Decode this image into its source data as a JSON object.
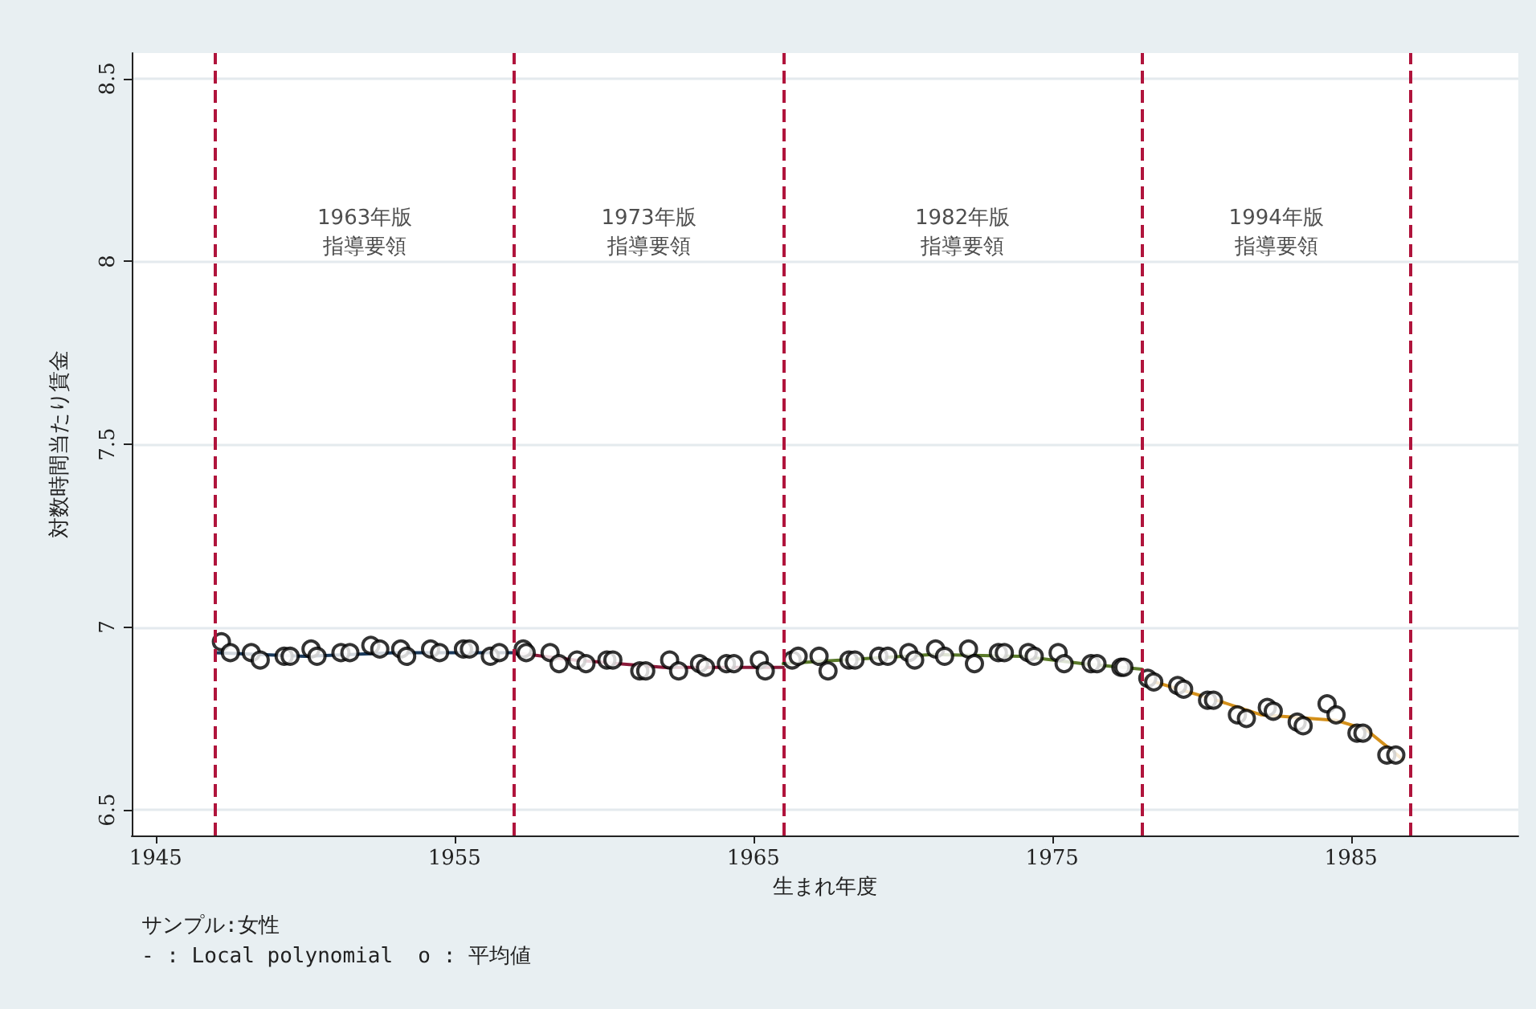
{
  "chart_data": {
    "type": "scatter",
    "xlabel": "生まれ年度",
    "ylabel": "対数時間当たり賃金",
    "xlim": [
      1944.2,
      1990.6
    ],
    "ylim": [
      6.43,
      8.57
    ],
    "xticks": [
      1945,
      1955,
      1965,
      1975,
      1985
    ],
    "yticks": [
      6.5,
      7,
      7.5,
      8,
      8.5
    ],
    "grid": "y",
    "ref_lines": [
      {
        "axis": "x",
        "value": 1947,
        "color": "#b0143c",
        "line_style": "dashed"
      },
      {
        "axis": "x",
        "value": 1957,
        "color": "#b0143c",
        "line_style": "dashed"
      },
      {
        "axis": "x",
        "value": 1966,
        "color": "#b0143c",
        "line_style": "dashed"
      },
      {
        "axis": "x",
        "value": 1978,
        "color": "#b0143c",
        "line_style": "dashed"
      },
      {
        "axis": "x",
        "value": 1987,
        "color": "#b0143c",
        "line_style": "dashed"
      }
    ],
    "annotations": [
      "1963年版指導要領",
      "1973年版指導要領",
      "1982年版指導要領",
      "1994年版指導要領",
      "サンプル:女性",
      "- : Local polynomial  o : 平均値"
    ],
    "series": [
      {
        "marker": "circle",
        "color": "#000000",
        "x": [
          1947.2,
          1947.5,
          1948.2,
          1948.5,
          1949.3,
          1949.5,
          1950.2,
          1950.4,
          1951.2,
          1951.5,
          1952.2,
          1952.5,
          1953.2,
          1953.4,
          1954.2,
          1954.5,
          1955.3,
          1955.5,
          1956.2,
          1956.5,
          1957.3,
          1957.4,
          1958.2,
          1958.5,
          1959.1,
          1959.4,
          1960.1,
          1960.3,
          1961.2,
          1961.4,
          1962.2,
          1962.5,
          1963.2,
          1963.4,
          1964.1,
          1964.35,
          1965.2,
          1965.4,
          1966.3,
          1966.5,
          1967.2,
          1967.5,
          1968.2,
          1968.4,
          1969.2,
          1969.5,
          1970.2,
          1970.4,
          1971.1,
          1971.4,
          1972.2,
          1972.4,
          1973.2,
          1973.4,
          1974.2,
          1974.4,
          1975.2,
          1975.4,
          1976.3,
          1976.5,
          1977.3,
          1977.4,
          1978.2,
          1978.4,
          1979.2,
          1979.4,
          1980.2,
          1980.4,
          1981.2,
          1981.5,
          1982.2,
          1982.4,
          1983.2,
          1983.4,
          1984.2,
          1984.5,
          1985.2,
          1985.4,
          1986.2,
          1986.5
        ],
        "values": [
          6.96,
          6.93,
          6.93,
          6.91,
          6.92,
          6.92,
          6.94,
          6.92,
          6.93,
          6.93,
          6.95,
          6.94,
          6.94,
          6.92,
          6.94,
          6.93,
          6.94,
          6.94,
          6.92,
          6.93,
          6.94,
          6.93,
          6.93,
          6.9,
          6.91,
          6.9,
          6.91,
          6.91,
          6.88,
          6.88,
          6.91,
          6.88,
          6.9,
          6.89,
          6.9,
          6.9,
          6.91,
          6.88,
          6.91,
          6.92,
          6.92,
          6.88,
          6.91,
          6.91,
          6.92,
          6.92,
          6.93,
          6.91,
          6.94,
          6.92,
          6.94,
          6.9,
          6.93,
          6.93,
          6.93,
          6.92,
          6.93,
          6.9,
          6.9,
          6.9,
          6.89,
          6.89,
          6.86,
          6.85,
          6.84,
          6.83,
          6.8,
          6.8,
          6.76,
          6.75,
          6.78,
          6.77,
          6.74,
          6.73,
          6.79,
          6.76,
          6.71,
          6.71,
          6.65,
          6.65
        ]
      },
      {
        "type": "line",
        "marker": "none",
        "color": "#1a3a5c",
        "x": [
          1947,
          1950,
          1953,
          1957
        ],
        "values": [
          6.93,
          6.92,
          6.93,
          6.93
        ]
      },
      {
        "type": "line",
        "marker": "none",
        "color": "#8b1a3a",
        "x": [
          1957,
          1959,
          1962,
          1964,
          1966
        ],
        "values": [
          6.93,
          6.91,
          6.89,
          6.89,
          6.89
        ]
      },
      {
        "type": "line",
        "marker": "none",
        "color": "#5a7a2a",
        "x": [
          1966,
          1968,
          1971,
          1974,
          1976,
          1978
        ],
        "values": [
          6.9,
          6.91,
          6.925,
          6.92,
          6.9,
          6.885
        ]
      },
      {
        "type": "line",
        "marker": "none",
        "color": "#d4901a",
        "x": [
          1978,
          1980.5,
          1982,
          1984.5,
          1985.5,
          1986.7
        ],
        "values": [
          6.86,
          6.8,
          6.76,
          6.745,
          6.72,
          6.64
        ]
      }
    ]
  }
}
